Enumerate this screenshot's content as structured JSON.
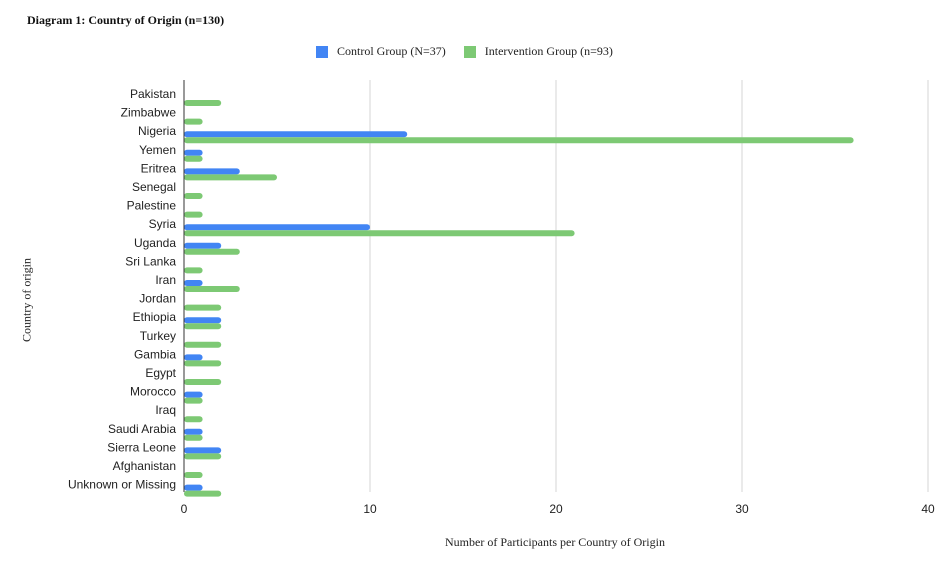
{
  "chart_data": {
    "type": "bar",
    "orientation": "horizontal",
    "title": "Diagram 1: Country of Origin (n=130)",
    "xlabel": "Number of Participants per Country of Origin",
    "ylabel": "Country of origin",
    "xlim": [
      0,
      40
    ],
    "xticks": [
      0,
      10,
      20,
      30,
      40
    ],
    "grid": true,
    "legend_position": "top",
    "categories": [
      "Pakistan",
      "Zimbabwe",
      "Nigeria",
      "Yemen",
      "Eritrea",
      "Senegal",
      "Palestine",
      "Syria",
      "Uganda",
      "Sri Lanka",
      "Iran",
      "Jordan",
      "Ethiopia",
      "Turkey",
      "Gambia",
      "Egypt",
      "Morocco",
      "Iraq",
      "Saudi Arabia",
      "Sierra Leone",
      "Afghanistan",
      "Unknown or Missing"
    ],
    "series": [
      {
        "name": "Control Group (N=37)",
        "color": "#4285f4",
        "values": [
          0,
          0,
          12,
          1,
          3,
          0,
          0,
          10,
          2,
          0,
          1,
          0,
          2,
          0,
          1,
          0,
          1,
          0,
          1,
          2,
          0,
          1
        ]
      },
      {
        "name": "Intervention Group (n=93)",
        "color": "#7dc974",
        "values": [
          2,
          1,
          36,
          1,
          5,
          1,
          1,
          21,
          3,
          1,
          3,
          2,
          2,
          2,
          2,
          2,
          1,
          1,
          1,
          2,
          1,
          2
        ]
      }
    ]
  }
}
